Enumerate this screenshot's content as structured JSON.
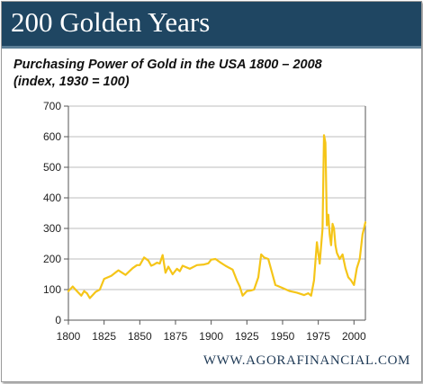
{
  "banner": {
    "title": "200 Golden Years"
  },
  "footer": {
    "url": "WWW.AGORAFINANCIAL.COM"
  },
  "colors": {
    "banner": "#1f4662",
    "line": "#f5c518",
    "gridline": "#bdbdbd"
  },
  "chart_data": {
    "type": "line",
    "title": "Purchasing Power of Gold in the USA 1800 – 2008",
    "subtitle": "(index, 1930 = 100)",
    "xlabel": "",
    "ylabel": "",
    "xlim": [
      1800,
      2008
    ],
    "ylim": [
      0,
      700
    ],
    "xticks": [
      1800,
      1825,
      1850,
      1875,
      1900,
      1925,
      1950,
      1975,
      2000
    ],
    "yticks": [
      0,
      100,
      200,
      300,
      400,
      500,
      600,
      700
    ],
    "grid": "horizontal",
    "legend": "none",
    "series": [
      {
        "x": [
          1800,
          1803,
          1806,
          1809,
          1811,
          1813,
          1815,
          1817,
          1819,
          1822,
          1825,
          1830,
          1835,
          1840,
          1845,
          1848,
          1850,
          1853,
          1856,
          1858,
          1860,
          1862,
          1864,
          1866,
          1868,
          1870,
          1873,
          1876,
          1878,
          1880,
          1885,
          1890,
          1895,
          1898,
          1900,
          1903,
          1906,
          1910,
          1915,
          1918,
          1920,
          1922,
          1925,
          1928,
          1930,
          1933,
          1935,
          1937,
          1940,
          1945,
          1950,
          1955,
          1960,
          1965,
          1968,
          1970,
          1972,
          1974,
          1976,
          1978,
          1979,
          1980,
          1981,
          1982,
          1983,
          1984,
          1985,
          1986,
          1987,
          1988,
          1990,
          1992,
          1994,
          1996,
          1998,
          2000,
          2002,
          2004,
          2006,
          2008
        ],
        "y": [
          95,
          110,
          95,
          80,
          95,
          88,
          72,
          82,
          92,
          100,
          135,
          145,
          163,
          148,
          170,
          180,
          180,
          205,
          195,
          178,
          182,
          188,
          185,
          213,
          155,
          175,
          150,
          168,
          160,
          178,
          168,
          180,
          182,
          186,
          198,
          200,
          190,
          178,
          165,
          130,
          110,
          80,
          95,
          97,
          100,
          140,
          215,
          205,
          200,
          115,
          105,
          95,
          90,
          82,
          88,
          80,
          130,
          255,
          185,
          300,
          605,
          580,
          310,
          345,
          280,
          245,
          315,
          300,
          245,
          220,
          200,
          215,
          170,
          140,
          130,
          115,
          170,
          200,
          280,
          320
        ]
      }
    ]
  }
}
